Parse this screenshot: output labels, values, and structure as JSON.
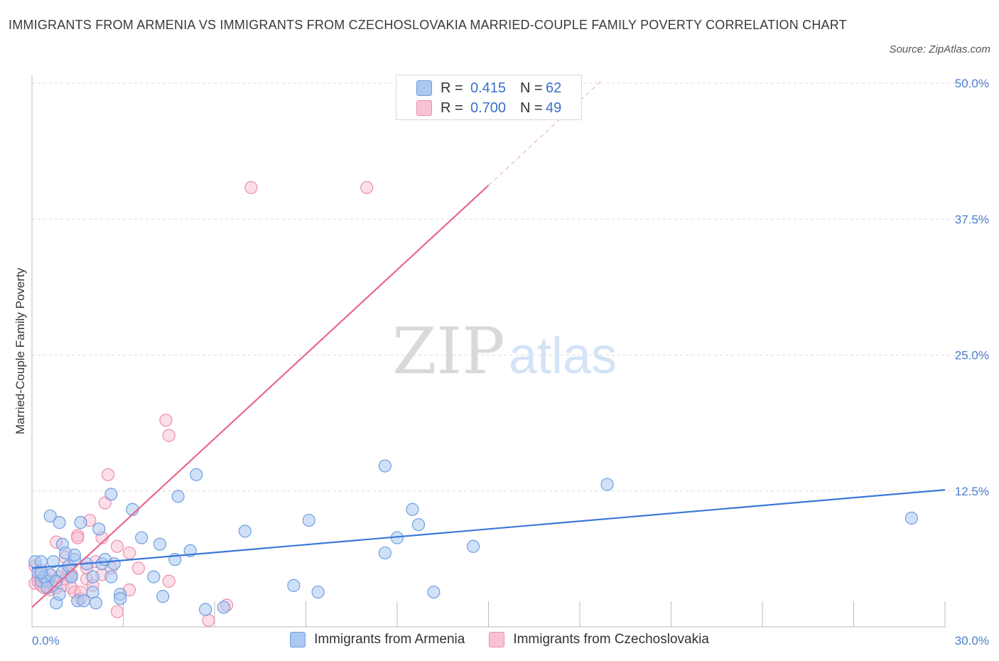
{
  "title": "IMMIGRANTS FROM ARMENIA VS IMMIGRANTS FROM CZECHOSLOVAKIA MARRIED-COUPLE FAMILY POVERTY CORRELATION CHART",
  "source": "Source: ZipAtlas.com",
  "watermark": {
    "zip": "ZIP",
    "atlas": "atlas"
  },
  "legend": {
    "r_label": "R =",
    "n_label": "N =",
    "rows": [
      {
        "r": "0.415",
        "n": "62",
        "color": "#aac8f0",
        "border": "#6f9ee0"
      },
      {
        "r": "0.700",
        "n": "49",
        "color": "#f7c3d4",
        "border": "#ea8fae"
      }
    ]
  },
  "bottom_legend": [
    {
      "label": "Immigrants from Armenia",
      "color": "#aac8f0",
      "border": "#6f9ee0"
    },
    {
      "label": "Immigrants from Czechoslovakia",
      "color": "#f7c3d4",
      "border": "#ea8fae"
    }
  ],
  "chart_data": {
    "type": "scatter",
    "title": "IMMIGRANTS FROM ARMENIA VS IMMIGRANTS FROM CZECHOSLOVAKIA MARRIED-COUPLE FAMILY POVERTY CORRELATION CHART",
    "xlabel": "",
    "ylabel": "Married-Couple Family Poverty",
    "xlim": [
      0,
      30
    ],
    "ylim": [
      0,
      50
    ],
    "x_tick_labels": [
      "0.0%",
      "30.0%"
    ],
    "y_ticks": [
      12.5,
      25.0,
      37.5,
      50.0
    ],
    "y_tick_labels": [
      "12.5%",
      "25.0%",
      "37.5%",
      "50.0%"
    ],
    "grid": true,
    "colors": {
      "armenia": "#6f9ee0",
      "armenia_fill": "#aac8f0",
      "armenia_line": "#3b78d8",
      "czech": "#ea8fae",
      "czech_fill": "#f7c3d4",
      "czech_line": "#e8678f"
    },
    "series": [
      {
        "name": "Immigrants from Armenia",
        "R": 0.415,
        "N": 62,
        "trend": {
          "x": [
            0,
            30
          ],
          "y": [
            5.4,
            12.6
          ]
        },
        "points": [
          [
            0.1,
            6.0
          ],
          [
            0.2,
            5.0
          ],
          [
            0.3,
            4.2
          ],
          [
            0.3,
            6.0
          ],
          [
            0.4,
            4.6
          ],
          [
            0.5,
            4.2
          ],
          [
            0.6,
            4.8
          ],
          [
            0.6,
            10.2
          ],
          [
            0.7,
            6.0
          ],
          [
            0.8,
            2.2
          ],
          [
            0.9,
            9.6
          ],
          [
            0.9,
            3.0
          ],
          [
            1.0,
            7.6
          ],
          [
            1.0,
            5.0
          ],
          [
            1.1,
            6.8
          ],
          [
            1.2,
            5.6
          ],
          [
            1.3,
            4.6
          ],
          [
            1.3,
            4.6
          ],
          [
            1.4,
            6.2
          ],
          [
            1.4,
            6.6
          ],
          [
            1.5,
            2.4
          ],
          [
            1.6,
            9.6
          ],
          [
            1.8,
            5.8
          ],
          [
            2.0,
            4.6
          ],
          [
            2.0,
            3.2
          ],
          [
            2.1,
            2.2
          ],
          [
            2.2,
            9.0
          ],
          [
            2.3,
            5.8
          ],
          [
            2.4,
            6.2
          ],
          [
            2.6,
            4.6
          ],
          [
            2.6,
            12.2
          ],
          [
            2.7,
            5.8
          ],
          [
            2.9,
            3.0
          ],
          [
            2.9,
            2.6
          ],
          [
            3.3,
            10.8
          ],
          [
            3.6,
            8.2
          ],
          [
            4.0,
            4.6
          ],
          [
            4.2,
            7.6
          ],
          [
            4.3,
            2.8
          ],
          [
            4.7,
            6.2
          ],
          [
            4.8,
            12.0
          ],
          [
            5.2,
            7.0
          ],
          [
            5.4,
            14.0
          ],
          [
            5.7,
            1.6
          ],
          [
            6.3,
            1.8
          ],
          [
            7.0,
            8.8
          ],
          [
            8.6,
            3.8
          ],
          [
            9.1,
            9.8
          ],
          [
            9.4,
            3.2
          ],
          [
            11.6,
            6.8
          ],
          [
            11.6,
            14.8
          ],
          [
            12.0,
            8.2
          ],
          [
            12.5,
            10.8
          ],
          [
            12.7,
            9.4
          ],
          [
            13.2,
            3.2
          ],
          [
            14.5,
            7.4
          ],
          [
            18.9,
            13.1
          ],
          [
            28.9,
            10.0
          ],
          [
            0.3,
            5.0
          ],
          [
            0.5,
            3.6
          ],
          [
            0.8,
            4.2
          ],
          [
            1.7,
            2.4
          ]
        ]
      },
      {
        "name": "Immigrants from Czechoslovakia",
        "R": 0.7,
        "N": 49,
        "trend": {
          "x": [
            0,
            15
          ],
          "y": [
            1.8,
            40.6
          ]
        },
        "trend_dashed": {
          "x": [
            15,
            18.7
          ],
          "y": [
            40.6,
            50.2
          ]
        },
        "points": [
          [
            0.1,
            5.6
          ],
          [
            0.1,
            4.0
          ],
          [
            0.2,
            4.6
          ],
          [
            0.2,
            4.2
          ],
          [
            0.3,
            3.8
          ],
          [
            0.3,
            5.2
          ],
          [
            0.4,
            3.6
          ],
          [
            0.4,
            4.4
          ],
          [
            0.5,
            4.2
          ],
          [
            0.6,
            3.4
          ],
          [
            0.6,
            4.8
          ],
          [
            0.7,
            3.8
          ],
          [
            0.7,
            4.2
          ],
          [
            0.8,
            7.8
          ],
          [
            0.8,
            3.6
          ],
          [
            0.9,
            4.6
          ],
          [
            1.0,
            3.8
          ],
          [
            1.1,
            6.4
          ],
          [
            1.1,
            4.4
          ],
          [
            1.2,
            5.0
          ],
          [
            1.3,
            3.6
          ],
          [
            1.3,
            4.8
          ],
          [
            1.4,
            3.2
          ],
          [
            1.5,
            8.4
          ],
          [
            1.5,
            8.2
          ],
          [
            1.6,
            2.6
          ],
          [
            1.6,
            3.2
          ],
          [
            1.8,
            4.4
          ],
          [
            1.8,
            5.4
          ],
          [
            1.9,
            9.8
          ],
          [
            2.0,
            3.8
          ],
          [
            2.1,
            6.0
          ],
          [
            2.3,
            4.8
          ],
          [
            2.3,
            8.2
          ],
          [
            2.4,
            11.4
          ],
          [
            2.5,
            14.0
          ],
          [
            2.6,
            5.4
          ],
          [
            2.8,
            7.4
          ],
          [
            2.8,
            1.4
          ],
          [
            3.2,
            6.8
          ],
          [
            3.2,
            3.4
          ],
          [
            3.5,
            5.4
          ],
          [
            4.5,
            4.2
          ],
          [
            4.4,
            19.0
          ],
          [
            4.5,
            17.6
          ],
          [
            5.8,
            0.6
          ],
          [
            6.4,
            2.0
          ],
          [
            7.2,
            40.4
          ],
          [
            11.0,
            40.4
          ]
        ]
      }
    ]
  }
}
